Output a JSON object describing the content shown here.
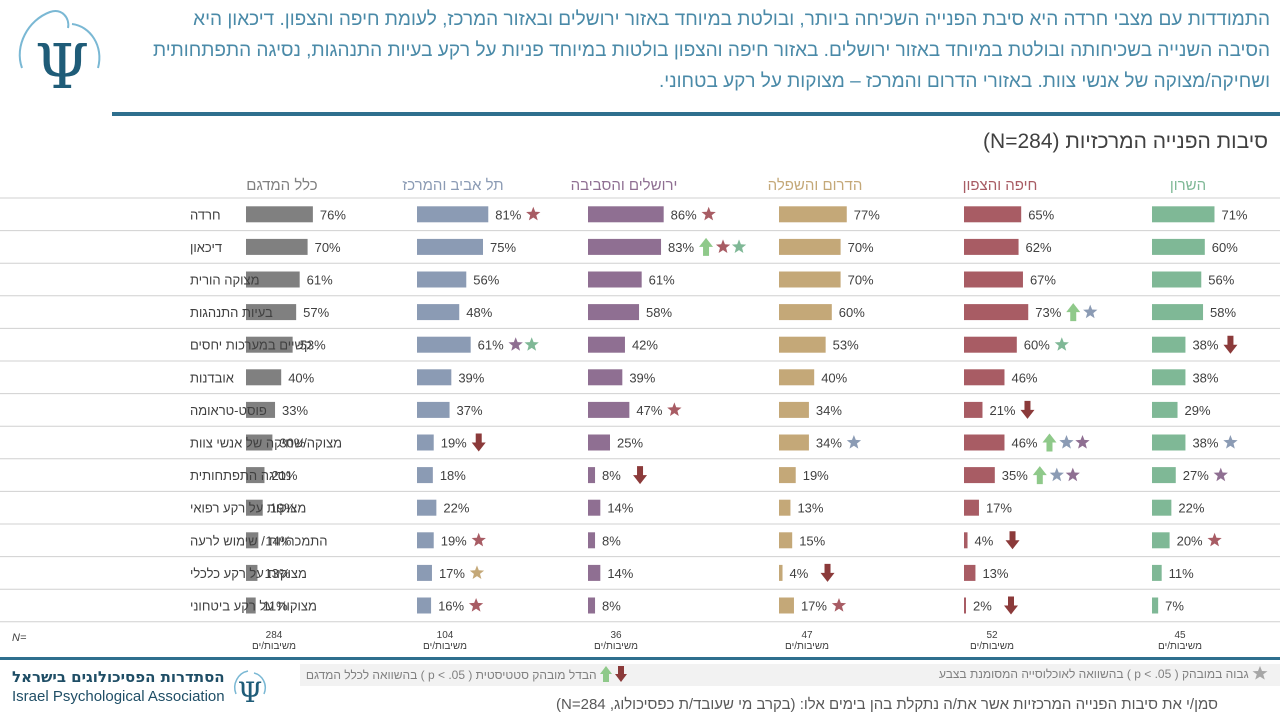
{
  "header": {
    "text": "התמודדות עם מצבי חרדה היא סיבת הפנייה השכיחה ביותר, ובולטת במיוחד באזור ירושלים ובאזור המרכז, לעומת חיפה והצפון. דיכאון היא הסיבה השנייה בשכיחותה ובולטת במיוחד באזור ירושלים. באזור חיפה והצפון בולטות במיוחד פניות על רקע בעיות התנהגות, נסיגה התפתחותית ושחיקה/מצוקה של אנשי צוות. באזורי הדרום והמרכז – מצוקות על רקע בטחוני."
  },
  "chart_data": {
    "type": "bar",
    "title": "סיבות הפנייה המרכזיות (N=284)",
    "categories": [
      "חרדה",
      "דיכאון",
      "מצוקה הורית",
      "בעיות התנהגות",
      "קשיים במערכות יחסים",
      "אובדנות",
      "פוסט-טראומה",
      "מצוקה/שחיקה של אנשי צוות",
      "נסיגה התפתחותית",
      "מצוקות על רקע רפואי",
      "התמכרויות / שימוש לרעה",
      "מצוקות על רקע כלכלי",
      "מצוקות על רקע ביטחוני"
    ],
    "series": [
      {
        "name": "השרון",
        "color": "#7fb896",
        "n": "45",
        "values": [
          71,
          60,
          56,
          58,
          38,
          38,
          29,
          38,
          27,
          22,
          20,
          11,
          7
        ],
        "markers": [
          [],
          [],
          [],
          [],
          [
            "down"
          ],
          [],
          [],
          [
            "star-blue"
          ],
          [
            "star-purple"
          ],
          [],
          [
            "star-red"
          ],
          [],
          []
        ]
      },
      {
        "name": "חיפה והצפון",
        "color": "#a85c64",
        "n": "52",
        "values": [
          65,
          62,
          67,
          73,
          60,
          46,
          21,
          46,
          35,
          17,
          4,
          13,
          2
        ],
        "markers": [
          [],
          [],
          [],
          [
            "up",
            "star-blue"
          ],
          [
            "star-green"
          ],
          [],
          [
            "down"
          ],
          [
            "up",
            "star-blue",
            "star-purple"
          ],
          [
            "up",
            "star-blue",
            "star-purple"
          ],
          [],
          [
            "down"
          ],
          [],
          [
            "down"
          ]
        ]
      },
      {
        "name": "הדרום והשפלה",
        "color": "#c4a878",
        "n": "47",
        "values": [
          77,
          70,
          70,
          60,
          53,
          40,
          34,
          34,
          19,
          13,
          15,
          4,
          17
        ],
        "markers": [
          [],
          [],
          [],
          [],
          [],
          [],
          [],
          [
            "star-blue"
          ],
          [],
          [],
          [],
          [
            "down"
          ],
          [
            "star-red"
          ]
        ]
      },
      {
        "name": "ירושלים והסביבה",
        "color": "#8f6f92",
        "n": "36",
        "values": [
          86,
          83,
          61,
          58,
          42,
          39,
          47,
          25,
          8,
          14,
          8,
          14,
          8
        ],
        "markers": [
          [
            "star-red"
          ],
          [
            "up",
            "star-red",
            "star-green"
          ],
          [],
          [],
          [],
          [],
          [
            "star-red"
          ],
          [],
          [
            "down"
          ],
          [],
          [],
          [],
          []
        ]
      },
      {
        "name": "תל אביב והמרכז",
        "color": "#8b9bb4",
        "n": "104",
        "values": [
          81,
          75,
          56,
          48,
          61,
          39,
          37,
          19,
          18,
          22,
          19,
          17,
          16
        ],
        "markers": [
          [
            "star-red"
          ],
          [],
          [],
          [],
          [
            "star-purple",
            "star-green"
          ],
          [],
          [],
          [
            "down"
          ],
          [],
          [],
          [
            "star-red"
          ],
          [
            "star-tan"
          ],
          [
            "star-red"
          ]
        ]
      },
      {
        "name": "כלל המדגם",
        "color": "#808080",
        "n": "284",
        "values": [
          76,
          70,
          61,
          57,
          53,
          40,
          33,
          30,
          21,
          19,
          14,
          13,
          11
        ],
        "markers": [
          [],
          [],
          [],
          [],
          [],
          [],
          [],
          [],
          [],
          [],
          [],
          [],
          []
        ]
      }
    ],
    "n_label": "N=",
    "respondents_label": "משיבות/ים",
    "value_suffix": "%"
  },
  "legend": {
    "star_text": "גבוה במובהק ( p < .05 ) בהשוואה לאוכלוסייה  המסומנת בצבע",
    "arrow_text": "הבדל מובהק סטטיסטית ( p < .05 ) בהשוואה לכלל המדגם"
  },
  "footer": {
    "question": "סמן/י את סיבות הפנייה המרכזיות אשר את/ה נתקלת בהן בימים אלו: (בקרב מי שעובד/ת כפסיכולוג, N=284)",
    "assoc_he": "הסתדרות הפסיכולוגים בישראל",
    "assoc_en": "Israel Psychological Association"
  },
  "colors": {
    "accent": "#2e6f8e",
    "header_text": "#4a8aa8",
    "up_arrow": "#8fc98a",
    "down_arrow": "#8b3a3a",
    "star_red": "#a85c64",
    "star_blue": "#8b9bb4",
    "star_purple": "#8f6f92",
    "star_green": "#7fb896",
    "star_tan": "#c4a878",
    "star_gray": "#a6a6a6"
  },
  "icons": [
    "psi-logo-icon",
    "star-icon",
    "up-arrow-icon",
    "down-arrow-icon"
  ]
}
